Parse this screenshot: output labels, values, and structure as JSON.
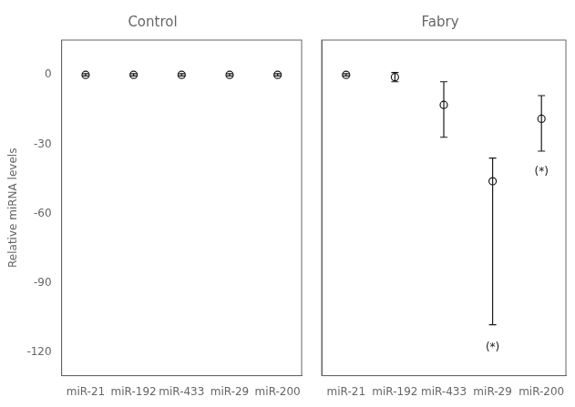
{
  "chart_data": [
    {
      "type": "scatter",
      "title": "Control",
      "categories": [
        "miR-21",
        "miR-192",
        "miR-433",
        "miR-29",
        "miR-200"
      ],
      "values": [
        0,
        0,
        0,
        0,
        0
      ],
      "err_low": [
        0.5,
        0.5,
        0.5,
        0.5,
        0.5
      ],
      "err_high": [
        0.5,
        0.5,
        0.5,
        0.5,
        0.5
      ],
      "ylabel": "Relative miRNA levels",
      "ylim": [
        -130,
        15
      ],
      "yticks": [
        0,
        -30,
        -60,
        -90,
        -120
      ],
      "color": "#1a1a1a",
      "marker": "circle",
      "grid": false
    },
    {
      "type": "scatter",
      "title": "Fabry",
      "categories": [
        "miR-21",
        "miR-192",
        "miR-433",
        "miR-29",
        "miR-200"
      ],
      "values": [
        0,
        -1,
        -13,
        -46,
        -19
      ],
      "err_low": [
        0.5,
        2,
        14,
        62,
        14
      ],
      "err_high": [
        0.5,
        2,
        10,
        10,
        10
      ],
      "annotations": [
        {
          "text": "(*)",
          "category": "miR-29",
          "y": -118
        },
        {
          "text": "(*)",
          "category": "miR-200",
          "y": -42
        }
      ],
      "ylim": [
        -130,
        15
      ],
      "yticks": [
        0,
        -30,
        -60,
        -90,
        -120
      ],
      "color": "#1a1a1a",
      "marker": "circle",
      "grid": false,
      "tick_labels": "x"
    }
  ]
}
